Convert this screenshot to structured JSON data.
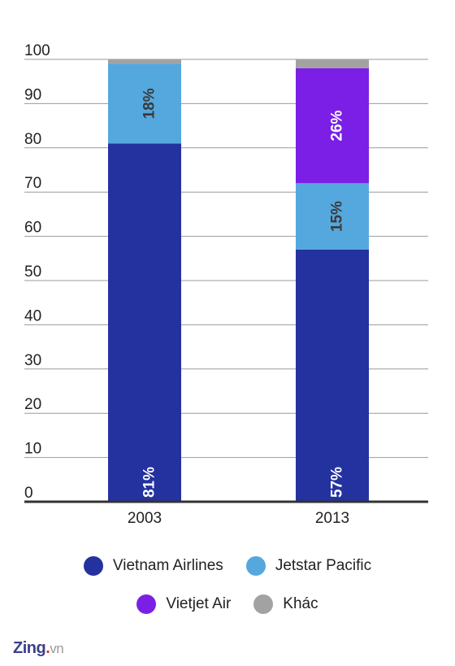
{
  "chart_data": {
    "type": "bar",
    "stacked": true,
    "categories": [
      "2003",
      "2013"
    ],
    "ylim": [
      0,
      100
    ],
    "yticks": [
      0,
      10,
      20,
      30,
      40,
      50,
      60,
      70,
      80,
      90,
      100
    ],
    "grid": true,
    "legend_position": "bottom",
    "series": [
      {
        "name": "Vietnam Airlines",
        "color": "#2432a0",
        "values": [
          81,
          57
        ],
        "labels": [
          "81%",
          "57%"
        ],
        "label_color": "#ffffff"
      },
      {
        "name": "Jetstar Pacific",
        "color": "#55a8de",
        "values": [
          18,
          15
        ],
        "labels": [
          "18%",
          "15%"
        ],
        "label_color": "#3a3a3a"
      },
      {
        "name": "Vietjet Air",
        "color": "#7b1fe6",
        "values": [
          0,
          26
        ],
        "labels": [
          "",
          "26%"
        ],
        "label_color": "#ffffff"
      },
      {
        "name": "Khác",
        "color": "#a2a2a2",
        "values": [
          1,
          2
        ],
        "labels": [
          "",
          ""
        ],
        "label_color": "#3a3a3a"
      }
    ]
  },
  "watermark": {
    "main": "Zing",
    "dot": ".",
    "suffix": "vn"
  }
}
